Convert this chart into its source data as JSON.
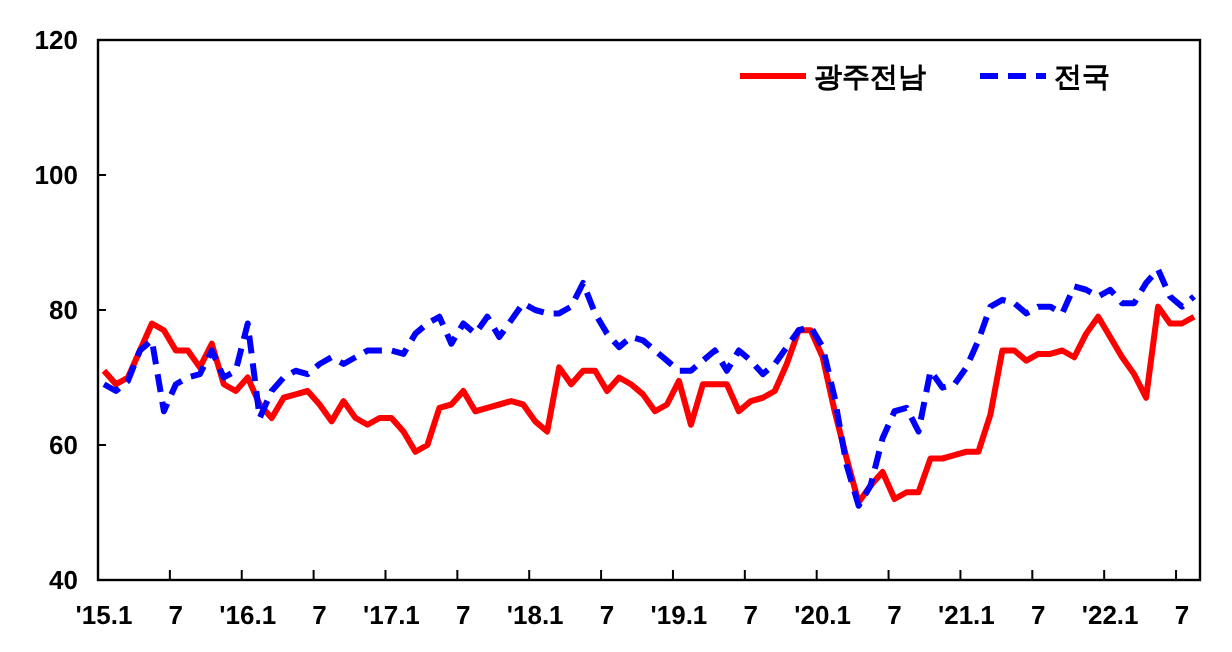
{
  "chart_data": {
    "type": "line",
    "categories": [
      "'15.1",
      null,
      null,
      null,
      null,
      null,
      "7",
      null,
      null,
      null,
      null,
      null,
      "'16.1",
      null,
      null,
      null,
      null,
      null,
      "7",
      null,
      null,
      null,
      null,
      null,
      "'17.1",
      null,
      null,
      null,
      null,
      null,
      "7",
      null,
      null,
      null,
      null,
      null,
      "'18.1",
      null,
      null,
      null,
      null,
      null,
      "7",
      null,
      null,
      null,
      null,
      null,
      "'19.1",
      null,
      null,
      null,
      null,
      null,
      "7",
      null,
      null,
      null,
      null,
      null,
      "'20.1",
      null,
      null,
      null,
      null,
      null,
      "7",
      null,
      null,
      null,
      null,
      null,
      "'21.1",
      null,
      null,
      null,
      null,
      null,
      "7",
      null,
      null,
      null,
      null,
      null,
      "'22.1",
      null,
      null,
      null,
      null,
      null,
      "7",
      null
    ],
    "ylim": [
      40,
      120
    ],
    "yticks": [
      40,
      60,
      80,
      100,
      120
    ],
    "grid": false,
    "legend": "top right",
    "series": [
      {
        "name": "광주전남",
        "color": "#ff0000",
        "line_style": "solid",
        "values": [
          71,
          69,
          70,
          74,
          78,
          77,
          74,
          74,
          71.5,
          75,
          69,
          68,
          70,
          66,
          64,
          67,
          67.5,
          68,
          66,
          63.5,
          66.5,
          64,
          63,
          64,
          64,
          62,
          59,
          60,
          65.5,
          66,
          68,
          65,
          65.5,
          66,
          66.5,
          66,
          63.5,
          62,
          71.5,
          69,
          71,
          71,
          68,
          70,
          69,
          67.5,
          65,
          66,
          69.5,
          63,
          69,
          69,
          69,
          65,
          66.5,
          67,
          68,
          72,
          77,
          77,
          73,
          65,
          58,
          51.5,
          54,
          56,
          52,
          53,
          53,
          58,
          58,
          58.5,
          59,
          59,
          64.5,
          74,
          74,
          72.5,
          73.5,
          73.5,
          74,
          73,
          76.5,
          79,
          76,
          73,
          70.5,
          67,
          80.5,
          78,
          78,
          79
        ]
      },
      {
        "name": "전국",
        "color": "#0000ff",
        "line_style": "dashed",
        "values": [
          69,
          68,
          69.5,
          74,
          75.5,
          65,
          69,
          70,
          70.5,
          74,
          70,
          71,
          78,
          64,
          68,
          70,
          71,
          70.5,
          72,
          73,
          72,
          73,
          74,
          74,
          74,
          73.5,
          76.5,
          78,
          79,
          75,
          78,
          76.5,
          79,
          76,
          78.5,
          81,
          80,
          79.5,
          79.5,
          80.5,
          84,
          79.5,
          76.5,
          74.5,
          76,
          75.5,
          74,
          72.5,
          71,
          71,
          72.5,
          74,
          71,
          74,
          72.5,
          70.5,
          72,
          74.5,
          77,
          77.5,
          74.5,
          67,
          57,
          51,
          54,
          61,
          65,
          65.5,
          62,
          71,
          68.5,
          69,
          71.5,
          75.5,
          80.5,
          81.5,
          81,
          79.5,
          80.5,
          80.5,
          79.5,
          83.5,
          83,
          82,
          83,
          81,
          81,
          84,
          86,
          82,
          80.5,
          82
        ]
      }
    ]
  }
}
